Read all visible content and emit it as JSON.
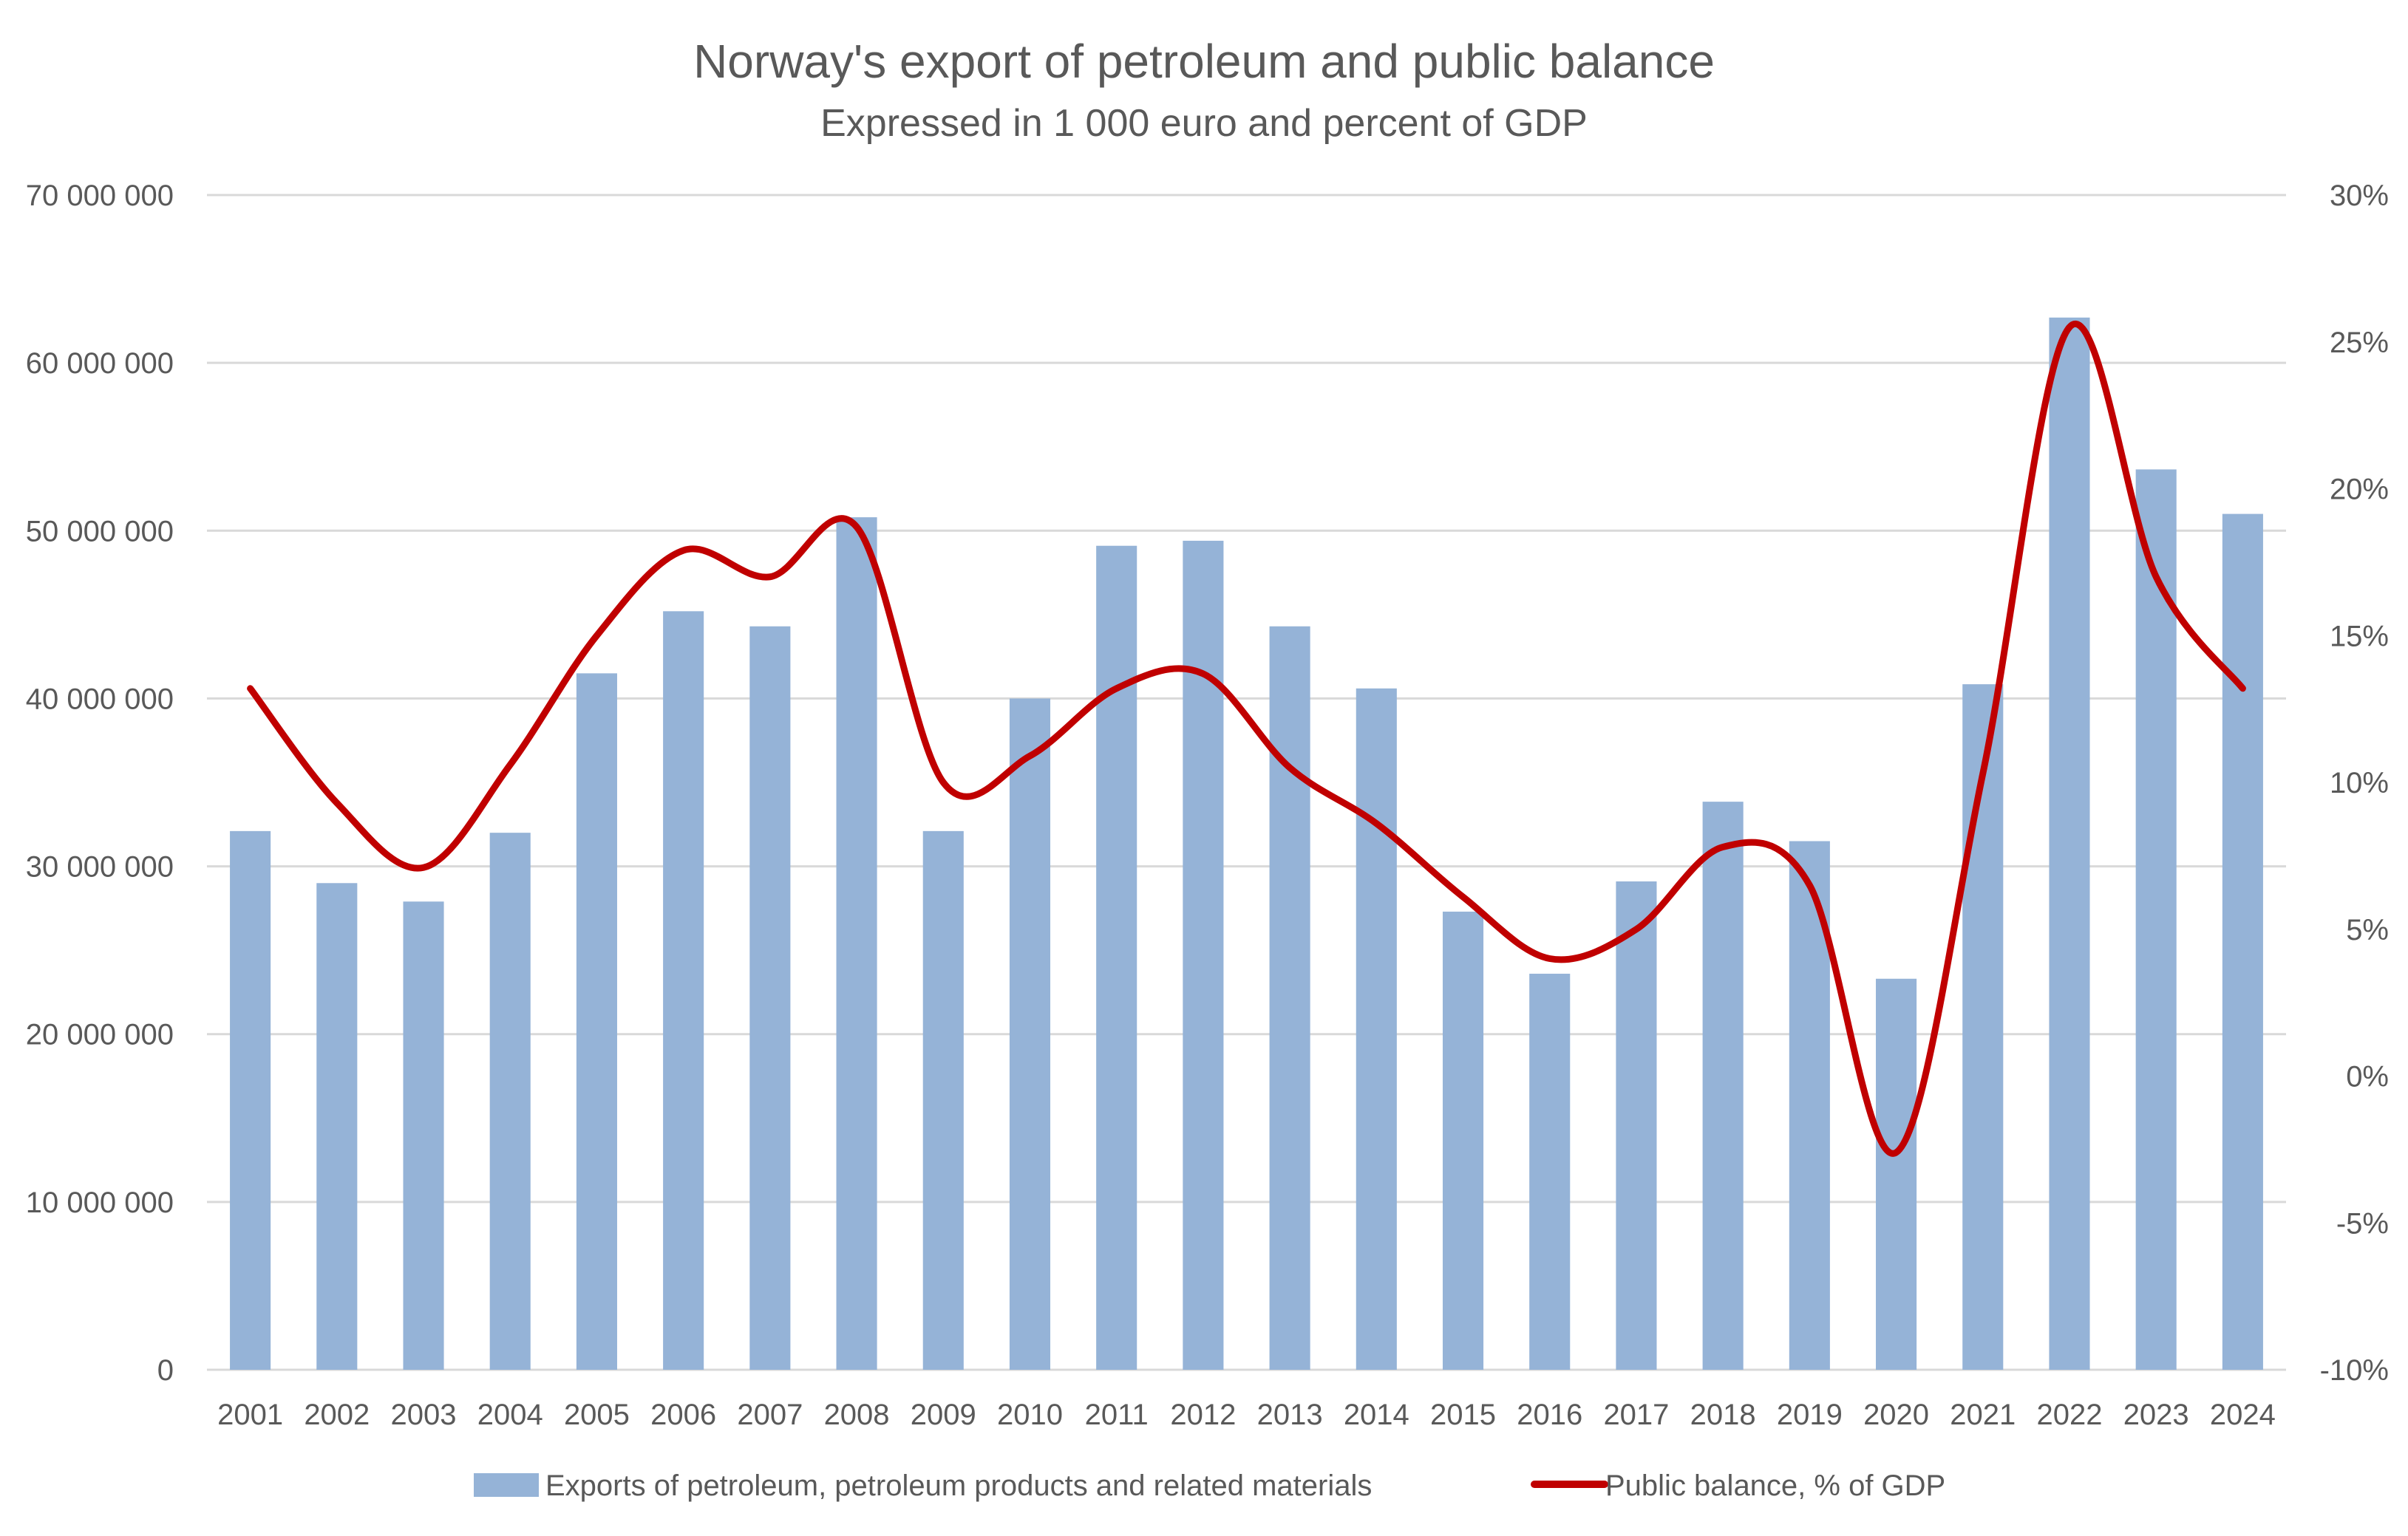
{
  "chart_data": {
    "type": "bar+line",
    "title": "Norway's export of petroleum and public balance",
    "subtitle": "Expressed in 1 000 euro and percent of GDP",
    "xlabel": "",
    "ylabel": "",
    "y2label": "",
    "categories": [
      "2001",
      "2002",
      "2003",
      "2004",
      "2005",
      "2006",
      "2007",
      "2008",
      "2009",
      "2010",
      "2011",
      "2012",
      "2013",
      "2014",
      "2015",
      "2016",
      "2017",
      "2018",
      "2019",
      "2020",
      "2021",
      "2022",
      "2023",
      "2024"
    ],
    "series": [
      {
        "name": "Exports of petroleum, petroleum products and related materials",
        "type": "bar",
        "axis": "left",
        "color": "#95b3d7",
        "values": [
          32100000,
          29000000,
          27900000,
          32000000,
          41500000,
          45200000,
          44300000,
          50800000,
          32100000,
          40000000,
          49100000,
          49400000,
          44300000,
          40600000,
          27300000,
          23600000,
          29100000,
          33850000,
          31500000,
          23300000,
          40850000,
          62700000,
          53650000,
          51000000
        ]
      },
      {
        "name": "Public balance, % of GDP",
        "type": "line",
        "smooth": true,
        "axis": "right",
        "color": "#c00000",
        "values": [
          13.2,
          9.3,
          7.1,
          10.6,
          15.0,
          17.9,
          17.0,
          18.7,
          10.0,
          10.9,
          13.2,
          13.7,
          10.5,
          8.6,
          6.1,
          4.0,
          5.0,
          7.8,
          6.5,
          -2.6,
          10.3,
          25.5,
          17.0,
          13.2
        ]
      }
    ],
    "ylim": [
      0,
      70000000
    ],
    "y_ticks": [
      0,
      10000000,
      20000000,
      30000000,
      40000000,
      50000000,
      60000000,
      70000000
    ],
    "y_tick_labels": [
      "0",
      "10 000 000",
      "20 000 000",
      "30 000 000",
      "40 000 000",
      "50 000 000",
      "60 000 000",
      "70 000 000"
    ],
    "y2lim": [
      -10,
      30
    ],
    "y2_ticks": [
      -10,
      -5,
      0,
      5,
      10,
      15,
      20,
      25,
      30
    ],
    "y2_tick_labels": [
      "-10%",
      "-5%",
      "0%",
      "5%",
      "10%",
      "15%",
      "20%",
      "25%",
      "30%"
    ],
    "grid": true,
    "legend": "bottom"
  }
}
